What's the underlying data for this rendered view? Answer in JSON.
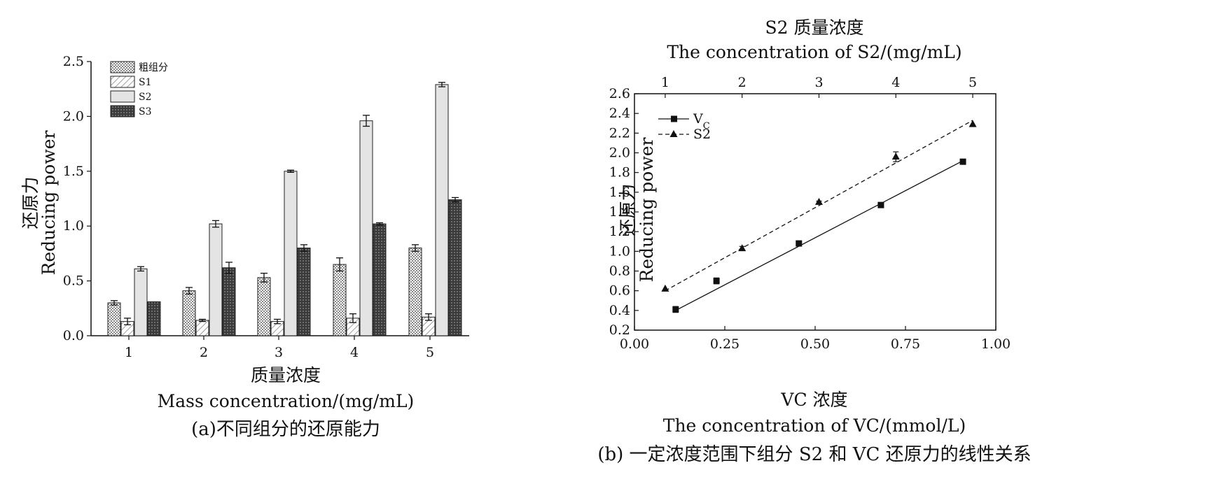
{
  "chart_data": [
    {
      "type": "bar",
      "caption": "(a)不同组分的还原能力",
      "xlabel_cn": "质量浓度",
      "xlabel": "Mass concentration/(mg/mL)",
      "ylabel_cn": "还原力",
      "ylabel": "Reducing power",
      "categories": [
        "1",
        "2",
        "3",
        "4",
        "5"
      ],
      "ylim": [
        0,
        2.5
      ],
      "yticks": [
        "0.0",
        "0.5",
        "1.0",
        "1.5",
        "2.0",
        "2.5"
      ],
      "legend_position": "top-left",
      "series": [
        {
          "name": "粗组分",
          "pattern": "dots",
          "color": "#c8c8c8",
          "values": [
            0.3,
            0.41,
            0.53,
            0.65,
            0.8
          ],
          "errors": [
            0.02,
            0.03,
            0.04,
            0.06,
            0.03
          ]
        },
        {
          "name": "S1",
          "pattern": "hatch",
          "color": "#ffffff",
          "values": [
            0.13,
            0.14,
            0.13,
            0.16,
            0.17
          ],
          "errors": [
            0.03,
            0.01,
            0.02,
            0.04,
            0.03
          ]
        },
        {
          "name": "S2",
          "pattern": "light",
          "color": "#e6e6e6",
          "values": [
            0.61,
            1.02,
            1.5,
            1.96,
            2.29
          ],
          "errors": [
            0.02,
            0.03,
            0.01,
            0.05,
            0.02
          ]
        },
        {
          "name": "S3",
          "pattern": "dark",
          "color": "#4a4a4a",
          "values": [
            0.31,
            0.62,
            0.8,
            1.02,
            1.24
          ],
          "errors": [
            0.0,
            0.05,
            0.03,
            0.01,
            0.02
          ]
        }
      ]
    },
    {
      "type": "scatter",
      "caption": "(b) 一定浓度范围下组分 S2 和 VC 还原力的线性关系",
      "xlabel_cn": "VC 浓度",
      "xlabel": "The concentration of VC/(mmol/L)",
      "x2label_cn": "S2 质量浓度",
      "x2label": "The concentration of S2/(mg/mL)",
      "ylabel_cn": "还原力",
      "ylabel": "Reducing power",
      "xlim": [
        0,
        1
      ],
      "xticks": [
        "0.00",
        "0.25",
        "0.50",
        "0.75",
        "1.00"
      ],
      "x2lim": [
        0.6,
        5.3
      ],
      "x2ticks": [
        "1",
        "2",
        "3",
        "4",
        "5"
      ],
      "ylim": [
        0.2,
        2.6
      ],
      "yticks": [
        "0.2",
        "0.4",
        "0.6",
        "0.8",
        "1.0",
        "1.2",
        "1.4",
        "1.6",
        "1.8",
        "2.0",
        "2.2",
        "2.4",
        "2.6"
      ],
      "legend_position": "top-left",
      "series": [
        {
          "name": "V",
          "name_sub": "C",
          "marker": "square",
          "line": "solid",
          "axis": "bottom",
          "x": [
            0.114,
            0.227,
            0.455,
            0.682,
            0.909
          ],
          "y": [
            0.41,
            0.7,
            1.08,
            1.47,
            1.91
          ],
          "errors": [
            0.03,
            0.03,
            0.01,
            0.02,
            0.01
          ],
          "fit": [
            0.4,
            1.92
          ]
        },
        {
          "name": "S2",
          "marker": "triangle",
          "line": "dashed",
          "axis": "top",
          "x": [
            1,
            2,
            3,
            4,
            5
          ],
          "y": [
            0.62,
            1.03,
            1.5,
            1.96,
            2.29
          ],
          "errors": [
            0.0,
            0.02,
            0.01,
            0.05,
            0.0
          ],
          "fit": [
            0.6,
            2.33
          ]
        }
      ]
    }
  ]
}
